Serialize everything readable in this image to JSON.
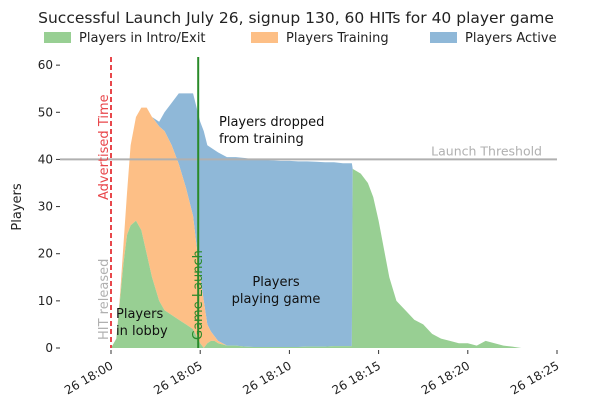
{
  "chart_data": {
    "type": "area",
    "title": "Successful Launch July 26, signup 130, 60 HITs for 40 player game",
    "xlabel": "",
    "ylabel": "Players",
    "xlim": [
      "26 18:00",
      "26 18:25"
    ],
    "ylim": [
      0,
      63
    ],
    "x_ticks": [
      "26 18:00",
      "26 18:05",
      "26 18:10",
      "26 18:15",
      "26 18:20",
      "26 18:25"
    ],
    "y_ticks": [
      "0",
      "10",
      "20",
      "30",
      "40",
      "50",
      "60"
    ],
    "grid": false,
    "legend_position": "top",
    "stacked": true,
    "series": [
      {
        "name": "Players in Intro/Exit",
        "color": "#98cf93",
        "x_minutes": [
          0.0,
          0.3,
          0.5,
          0.7,
          0.9,
          1.1,
          1.4,
          1.7,
          2.0,
          2.3,
          2.7,
          3.0,
          3.4,
          3.8,
          4.2,
          4.6,
          5.0,
          5.2,
          5.4,
          5.6,
          5.8,
          6.0,
          6.5,
          7.0,
          7.5,
          8.0,
          8.5,
          9.0,
          9.5,
          10.0,
          10.5,
          11.0,
          11.5,
          12.0,
          12.5,
          13.0,
          13.5,
          13.55,
          14.0,
          14.4,
          14.7,
          15.0,
          15.3,
          15.6,
          16.0,
          16.5,
          17.0,
          17.5,
          18.0,
          18.5,
          19.0,
          19.5,
          20.0,
          20.5,
          21.0,
          21.5,
          22.0,
          22.5,
          23.0
        ],
        "values": [
          0,
          2,
          10,
          18,
          24,
          26,
          27,
          25,
          20,
          15,
          10,
          8,
          7,
          6,
          5,
          4,
          1,
          0,
          1,
          1.5,
          1.5,
          1,
          0.5,
          0.5,
          0.3,
          0.2,
          0.2,
          0.2,
          0.2,
          0.2,
          0.2,
          0.3,
          0.3,
          0.3,
          0.4,
          0.4,
          0.4,
          38,
          37,
          35,
          32,
          27,
          21,
          15,
          10,
          8,
          6,
          5,
          3,
          2,
          1.5,
          1,
          1,
          0.5,
          1.5,
          1,
          0.5,
          0.3,
          0
        ]
      },
      {
        "name": "Players Training",
        "color": "#fdbf86",
        "x_minutes": [
          0.0,
          0.3,
          0.5,
          0.7,
          0.9,
          1.1,
          1.4,
          1.7,
          2.0,
          2.3,
          2.7,
          3.0,
          3.4,
          3.8,
          4.2,
          4.6,
          5.0,
          5.2,
          5.4,
          5.6,
          5.8,
          6.0,
          6.5,
          7.0,
          7.5,
          8.0,
          8.5,
          9.0,
          9.5,
          10.0,
          10.5,
          11.0,
          11.5,
          12.0,
          12.5,
          13.0,
          13.5
        ],
        "values": [
          0,
          0,
          1,
          4,
          9,
          17,
          22,
          26,
          31,
          34,
          37,
          38,
          36,
          33,
          29,
          24,
          14,
          10,
          4,
          2,
          1,
          0.5,
          0,
          0,
          0,
          0,
          0,
          0,
          0,
          0,
          0,
          0,
          0,
          0,
          0,
          0,
          0
        ]
      },
      {
        "name": "Players Active",
        "color": "#8fb8d8",
        "x_minutes": [
          0.0,
          0.3,
          0.5,
          0.7,
          0.9,
          1.1,
          1.4,
          1.7,
          2.0,
          2.3,
          2.7,
          3.0,
          3.4,
          3.8,
          4.2,
          4.6,
          5.0,
          5.2,
          5.4,
          5.6,
          5.8,
          6.0,
          6.5,
          7.0,
          7.5,
          8.0,
          8.5,
          9.0,
          9.5,
          10.0,
          10.5,
          11.0,
          11.5,
          12.0,
          12.5,
          13.0,
          13.5
        ],
        "values": [
          0,
          0,
          0,
          0,
          0,
          0,
          0,
          0,
          0,
          0,
          1,
          4,
          9,
          15,
          20,
          26,
          33,
          36,
          38,
          39,
          39.5,
          40,
          40,
          40,
          40,
          39.8,
          39.8,
          39.6,
          39.5,
          39.5,
          39.4,
          39.3,
          39.2,
          39.1,
          39,
          38.8,
          38.8
        ]
      }
    ],
    "reference_lines": [
      {
        "orientation": "horizontal",
        "value": 40,
        "label": "Launch Threshold",
        "color": "#b0b0b0"
      },
      {
        "orientation": "vertical",
        "value": "26 18:00",
        "label": "Advertised Time",
        "color": "#e8474b",
        "style": "dashed"
      },
      {
        "orientation": "vertical",
        "value": "26 18:00",
        "label": "HIT released",
        "color": "#b0b0b0"
      },
      {
        "orientation": "vertical",
        "value": "26 18:05",
        "label": "Game Launch",
        "color": "#2a8a2a"
      }
    ],
    "annotations": [
      {
        "label": "Players dropped\nfrom training",
        "x_minutes": 5.9,
        "y": 43
      },
      {
        "label": "Players\nplaying game",
        "x_minutes": 7.3,
        "y": 13
      },
      {
        "label": "Players\nin lobby",
        "x_minutes": 0.3,
        "y": 3
      }
    ]
  }
}
